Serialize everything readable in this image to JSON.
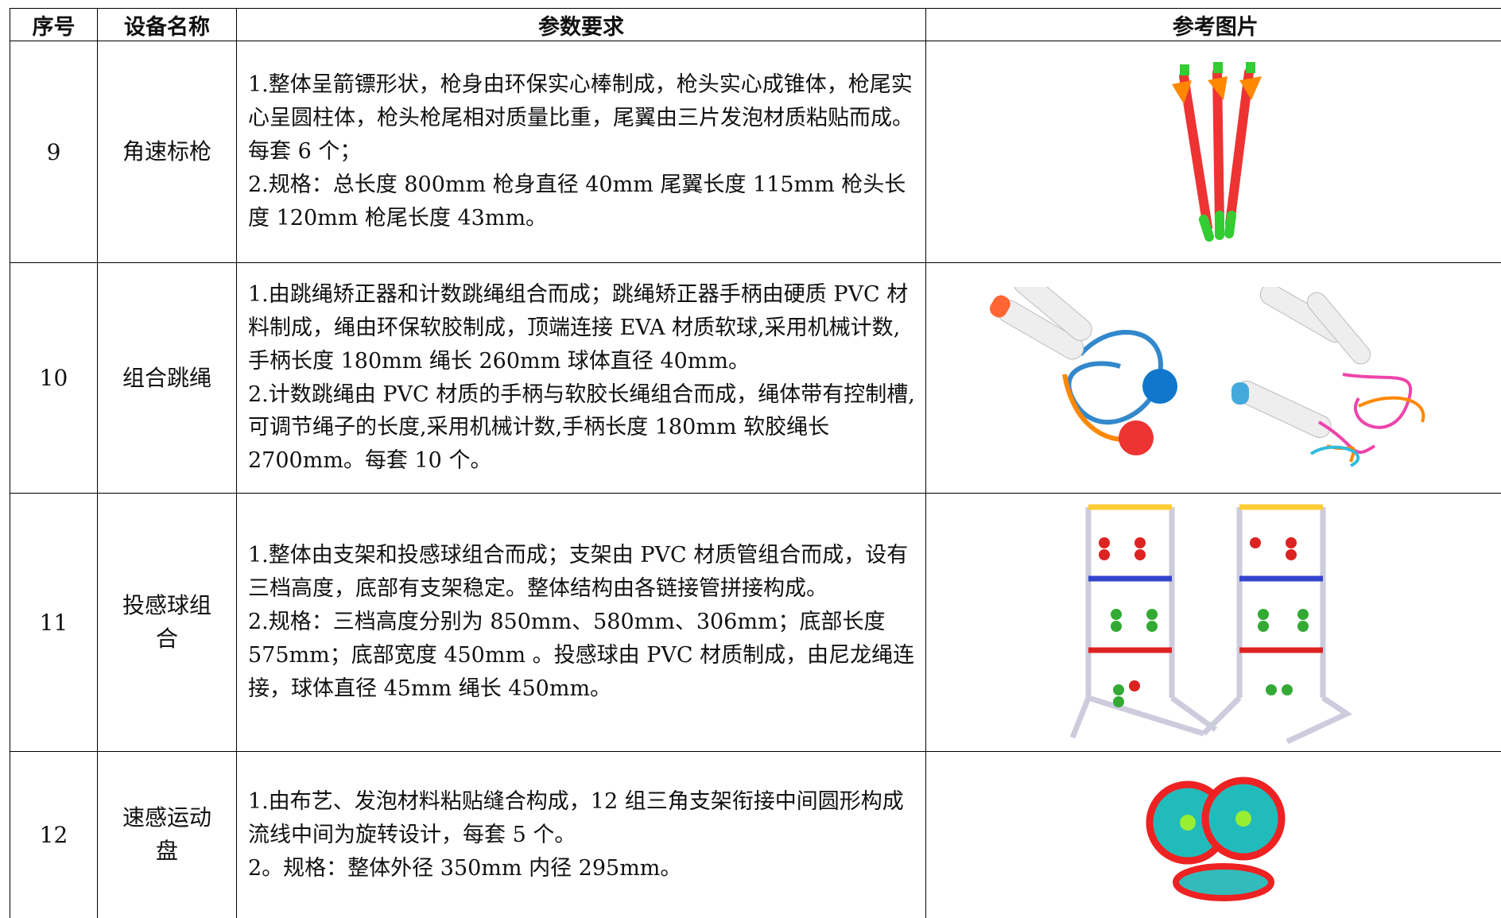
{
  "table": {
    "header": [
      "序号",
      "设备名称",
      "参数要求",
      "参考图片"
    ],
    "rows": [
      {
        "no": "9",
        "name": "角速标枪",
        "params": [
          "1.整体呈箭镖形状，枪身由环保实心棒制成，枪头实心成锥体，枪尾实心呈圆柱体，枪头枪尾相对质量比重，尾翼由三片发泡材质粘贴而成。每套 6 个；",
          "2.规格：总长度 800mm 枪身直径 40mm 尾翼长度 115mm 枪头长度 120mm 枪尾长度 43mm。"
        ]
      },
      {
        "no": "10",
        "name": "组合跳绳",
        "params": [
          "1.由跳绳矫正器和计数跳绳组合而成；跳绳矫正器手柄由硬质 PVC 材料制成，绳由环保软胶制成，顶端连接 EVA 材质软球,采用机械计数,手柄长度 180mm 绳长 260mm 球体直径 40mm。",
          "2.计数跳绳由 PVC 材质的手柄与软胶长绳组合而成，绳体带有控制槽,可调节绳子的长度,采用机械计数,手柄长度 180mm 软胶绳长 2700mm。每套 10 个。"
        ]
      },
      {
        "no": "11",
        "name": "投感球组合",
        "params": [
          "1.整体由支架和投感球组合而成；支架由 PVC 材质管组合而成，设有三档高度，底部有支架稳定。整体结构由各链接管拼接构成。",
          "2.规格：三档高度分别为 850mm、580mm、306mm；底部长度 575mm；底部宽度 450mm 。投感球由 PVC 材质制成，由尼龙绳连接，球体直径 45mm 绳长 450mm。"
        ]
      },
      {
        "no": "12",
        "name": "速感运动盘",
        "params": [
          "1.由布艺、发泡材料粘贴缝合构成，12 组三角支架衔接中间圆形构成流线中间为旋转设计，每套 5 个。",
          "2。规格：整体外径 350mm 内径 295mm。"
        ]
      }
    ]
  }
}
